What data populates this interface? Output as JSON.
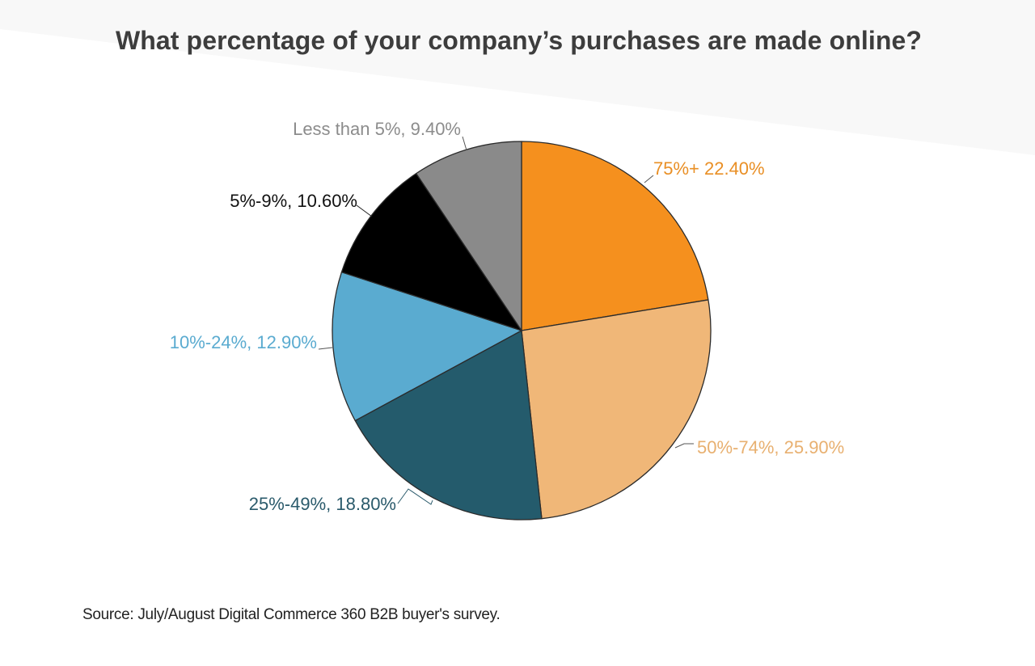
{
  "chart_data": {
    "type": "pie",
    "title": "What percentage of your company’s purchases are made online?",
    "source": "Source: July/August  Digital Commerce 360 B2B  buyer's survey.",
    "unit": "%",
    "start_angle_deg": 0,
    "direction": "clockwise",
    "slices": [
      {
        "label": "75%+ 22.40%",
        "category": "75%+",
        "value": 22.4,
        "color": "#f5901e",
        "label_color": "#e98f25"
      },
      {
        "label": "50%-74%, 25.90%",
        "category": "50%-74%",
        "value": 25.9,
        "color": "#f0b778",
        "label_color": "#e8b070"
      },
      {
        "label": "25%-49%, 18.80%",
        "category": "25%-49%",
        "value": 18.8,
        "color": "#245b6c",
        "label_color": "#2a5a6b"
      },
      {
        "label": "10%-24%, 12.90%",
        "category": "10%-24%",
        "value": 12.9,
        "color": "#5aabd0",
        "label_color": "#5aabd0"
      },
      {
        "label": "5%-9%, 10.60%",
        "category": "5%-9%",
        "value": 10.6,
        "color": "#000000",
        "label_color": "#111111"
      },
      {
        "label": "Less than 5%, 9.40%",
        "category": "Less than 5%",
        "value": 9.4,
        "color": "#8a8a8a",
        "label_color": "#8c8c8c"
      }
    ]
  }
}
